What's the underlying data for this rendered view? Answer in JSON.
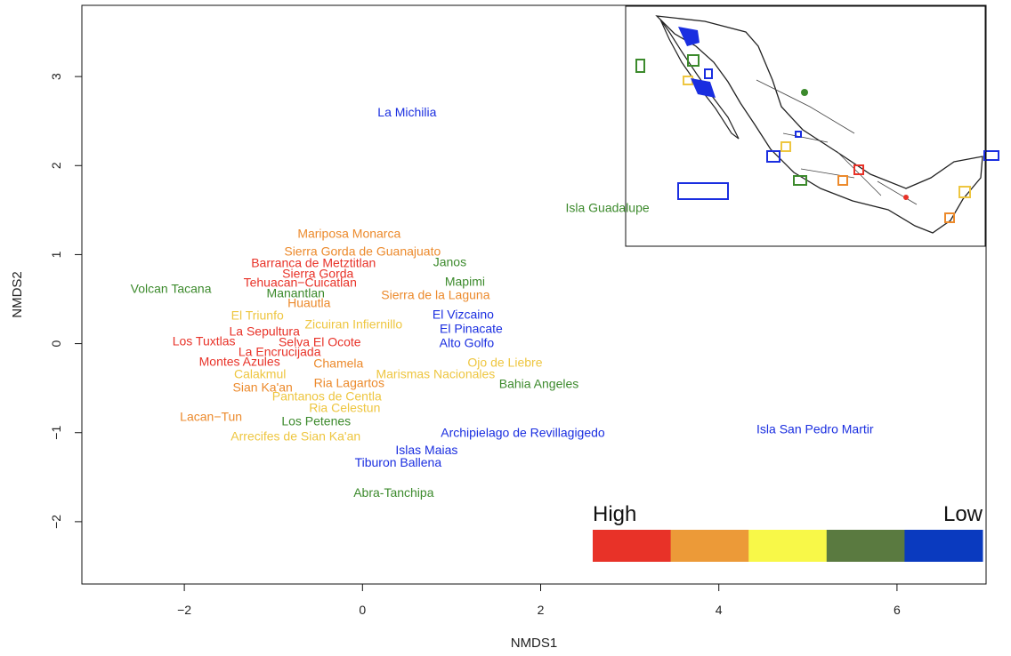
{
  "chart_data": {
    "type": "scatter",
    "title": "",
    "xlabel": "NMDS1",
    "ylabel": "NMDS2",
    "xlim": [
      -3.15,
      7.0
    ],
    "ylim": [
      -2.7,
      3.8
    ],
    "xticks": [
      -2,
      0,
      2,
      4,
      6
    ],
    "yticks": [
      -2,
      -1,
      0,
      1,
      2,
      3
    ],
    "xtick_labels": [
      "−2",
      "0",
      "2",
      "4",
      "6"
    ],
    "ytick_labels": [
      "−2",
      "−1",
      "0",
      "1",
      "2",
      "3"
    ],
    "grid": false,
    "colors": {
      "1": "#e83228",
      "2": "#ec8a2c",
      "3": "#eec640",
      "4": "#3c8a2c",
      "5": "#1a2ee0"
    },
    "points": [
      {
        "label": "La Michilia",
        "x": 0.5,
        "y": 2.6,
        "c": 5
      },
      {
        "label": "Isla Guadalupe",
        "x": 2.75,
        "y": 1.53,
        "c": 4
      },
      {
        "label": "Mariposa Monarca",
        "x": -0.15,
        "y": 1.24,
        "c": 2
      },
      {
        "label": "Sierra Gorda de Guanajuato",
        "x": 0.0,
        "y": 1.04,
        "c": 2
      },
      {
        "label": "Barranca de Metztitlan",
        "x": -0.55,
        "y": 0.91,
        "c": 1
      },
      {
        "label": "Janos",
        "x": 0.98,
        "y": 0.92,
        "c": 4
      },
      {
        "label": "Sierra Gorda",
        "x": -0.5,
        "y": 0.79,
        "c": 1
      },
      {
        "label": "Tehuacan−Cuicatlan",
        "x": -0.7,
        "y": 0.69,
        "c": 1
      },
      {
        "label": "Mapimi",
        "x": 1.15,
        "y": 0.7,
        "c": 4
      },
      {
        "label": "Volcan Tacana",
        "x": -2.15,
        "y": 0.62,
        "c": 4
      },
      {
        "label": "Manantlan",
        "x": -0.75,
        "y": 0.57,
        "c": 4
      },
      {
        "label": "Sierra de la Laguna",
        "x": 0.82,
        "y": 0.55,
        "c": 2
      },
      {
        "label": "Huautla",
        "x": -0.6,
        "y": 0.46,
        "c": 2
      },
      {
        "label": "El Triunfo",
        "x": -1.18,
        "y": 0.32,
        "c": 3
      },
      {
        "label": "El Vizcaino",
        "x": 1.13,
        "y": 0.33,
        "c": 5
      },
      {
        "label": "Zicuiran Infiernillo",
        "x": -0.1,
        "y": 0.22,
        "c": 3
      },
      {
        "label": "El Pinacate",
        "x": 1.22,
        "y": 0.17,
        "c": 5
      },
      {
        "label": "La Sepultura",
        "x": -1.1,
        "y": 0.14,
        "c": 1
      },
      {
        "label": "Los Tuxtlas",
        "x": -1.78,
        "y": 0.03,
        "c": 1
      },
      {
        "label": "Selva El Ocote",
        "x": -0.48,
        "y": 0.02,
        "c": 1
      },
      {
        "label": "Alto Golfo",
        "x": 1.17,
        "y": 0.01,
        "c": 5
      },
      {
        "label": "La Encrucijada",
        "x": -0.93,
        "y": -0.09,
        "c": 1
      },
      {
        "label": "Montes Azules",
        "x": -1.38,
        "y": -0.2,
        "c": 1
      },
      {
        "label": "Chamela",
        "x": -0.27,
        "y": -0.22,
        "c": 2
      },
      {
        "label": "Ojo de Liebre",
        "x": 1.6,
        "y": -0.21,
        "c": 3
      },
      {
        "label": "Calakmul",
        "x": -1.15,
        "y": -0.34,
        "c": 3
      },
      {
        "label": "Marismas Nacionales",
        "x": 0.82,
        "y": -0.34,
        "c": 3
      },
      {
        "label": "Ria Lagartos",
        "x": -0.15,
        "y": -0.44,
        "c": 2
      },
      {
        "label": "Bahia Angeles",
        "x": 1.98,
        "y": -0.45,
        "c": 4
      },
      {
        "label": "Sian Ka'an",
        "x": -1.12,
        "y": -0.49,
        "c": 2
      },
      {
        "label": "Pantanos de Centla",
        "x": -0.4,
        "y": -0.59,
        "c": 3
      },
      {
        "label": "Ria Celestun",
        "x": -0.2,
        "y": -0.72,
        "c": 3
      },
      {
        "label": "Lacan−Tun",
        "x": -1.7,
        "y": -0.82,
        "c": 2
      },
      {
        "label": "Los Petenes",
        "x": -0.52,
        "y": -0.87,
        "c": 4
      },
      {
        "label": "Archipielago de Revillagigedo",
        "x": 1.8,
        "y": -1.0,
        "c": 5
      },
      {
        "label": "Isla San Pedro Martir",
        "x": 5.08,
        "y": -0.96,
        "c": 5
      },
      {
        "label": "Arrecifes de Sian Ka'an",
        "x": -0.75,
        "y": -1.04,
        "c": 3
      },
      {
        "label": "Islas Maias",
        "x": 0.72,
        "y": -1.19,
        "c": 5
      },
      {
        "label": "Tiburon Ballena",
        "x": 0.4,
        "y": -1.33,
        "c": 5
      },
      {
        "label": "Abra-Tanchipa",
        "x": 0.35,
        "y": -1.67,
        "c": 4
      }
    ],
    "legend": {
      "placement": "bottom-right",
      "high_label": "High",
      "low_label": "Low",
      "colors": [
        "#e83228",
        "#ec9a38",
        "#f8f848",
        "#5a7a40",
        "#0a3abf"
      ]
    },
    "inset": {
      "placement": "top-right",
      "content": "map of Mexico with protected areas outlined by color class"
    }
  }
}
